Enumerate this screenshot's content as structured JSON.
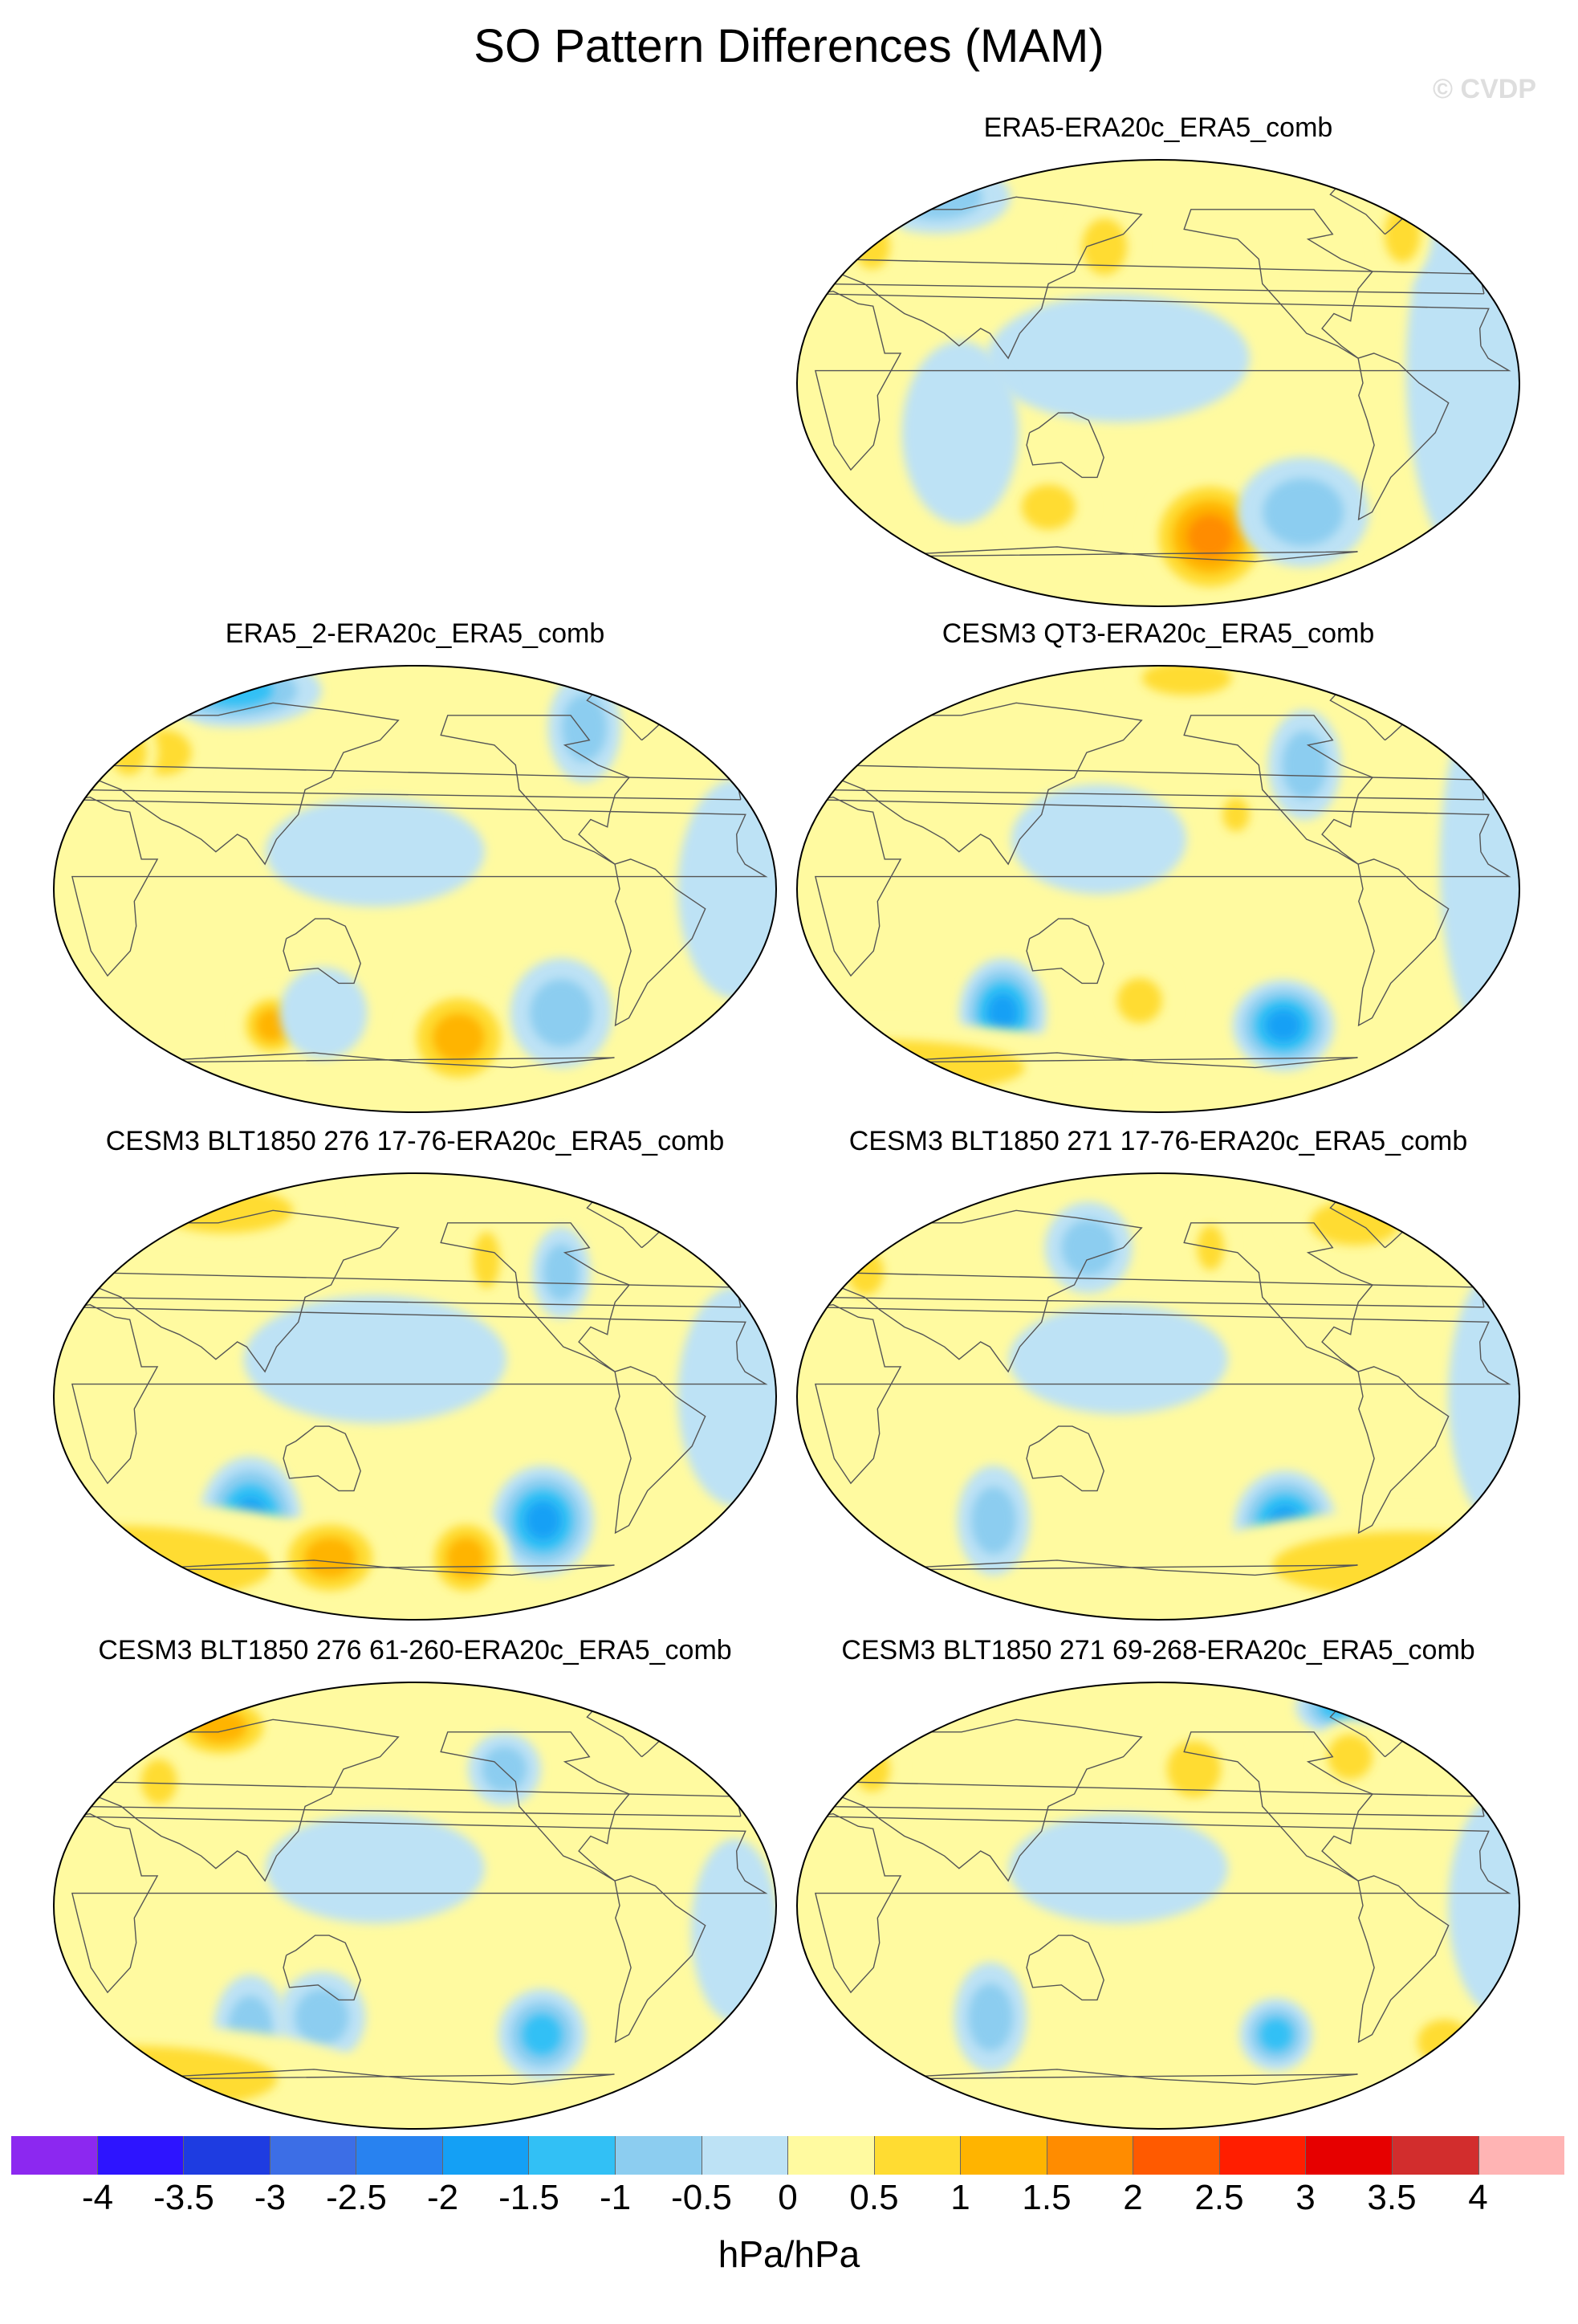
{
  "title": "SO Pattern Differences (MAM)",
  "watermark": "© CVDP",
  "panels": [
    {
      "title": "ERA5-ERA20c_ERA5_comb",
      "background": "#fffaa0",
      "anomalies": [
        {
          "lon": -150,
          "lat": -62,
          "rx": 0.09,
          "ry": 0.07,
          "level": 2.0
        },
        {
          "lon": 150,
          "lat": 55,
          "rx": 0.05,
          "ry": 0.05,
          "level": 1.0
        },
        {
          "lon": -100,
          "lat": -52,
          "rx": 0.09,
          "ry": 0.06,
          "level": -1.0
        },
        {
          "lon": -20,
          "lat": 5,
          "rx": 0.1,
          "ry": 0.22,
          "level": -0.5
        },
        {
          "lon": 160,
          "lat": 10,
          "rx": 0.18,
          "ry": 0.07,
          "level": -0.5
        },
        {
          "lon": 40,
          "lat": 75,
          "rx": 0.1,
          "ry": 0.04,
          "level": -1.0
        },
        {
          "lon": -40,
          "lat": 60,
          "rx": 0.04,
          "ry": 0.05,
          "level": 1.0
        },
        {
          "lon": 20,
          "lat": 55,
          "rx": 0.04,
          "ry": 0.04,
          "level": 1.0
        },
        {
          "lon": 120,
          "lat": -50,
          "rx": 0.06,
          "ry": 0.04,
          "level": 1.0
        },
        {
          "lon": 80,
          "lat": -20,
          "rx": 0.08,
          "ry": 0.1,
          "level": -0.5
        }
      ]
    },
    {
      "title": "ERA5_2-ERA20c_ERA5_comb",
      "background": "#fffaa0",
      "anomalies": [
        {
          "lon": -155,
          "lat": -60,
          "rx": 0.08,
          "ry": 0.06,
          "level": 1.5
        },
        {
          "lon": 100,
          "lat": -55,
          "rx": 0.05,
          "ry": 0.04,
          "level": 1.5
        },
        {
          "lon": 60,
          "lat": 80,
          "rx": 0.12,
          "ry": 0.04,
          "level": -1.5
        },
        {
          "lon": -100,
          "lat": -50,
          "rx": 0.07,
          "ry": 0.06,
          "level": -1.0
        },
        {
          "lon": 130,
          "lat": -50,
          "rx": 0.06,
          "ry": 0.05,
          "level": -0.5
        },
        {
          "lon": 160,
          "lat": 15,
          "rx": 0.15,
          "ry": 0.06,
          "level": -0.5
        },
        {
          "lon": 40,
          "lat": 55,
          "rx": 0.06,
          "ry": 0.04,
          "level": 1.0
        },
        {
          "lon": -80,
          "lat": 65,
          "rx": 0.05,
          "ry": 0.06,
          "level": -1.0
        },
        {
          "lon": -20,
          "lat": 0,
          "rx": 0.08,
          "ry": 0.12,
          "level": -0.5
        },
        {
          "lon": 20,
          "lat": 55,
          "rx": 0.04,
          "ry": 0.04,
          "level": 1.0
        }
      ]
    },
    {
      "title": "CESM3 QT3-ERA20c_ERA5_comb",
      "background": "#fffaa0",
      "anomalies": [
        {
          "lon": 95,
          "lat": -50,
          "rx": 0.06,
          "ry": 0.06,
          "level": -2.0
        },
        {
          "lon": -110,
          "lat": -55,
          "rx": 0.07,
          "ry": 0.05,
          "level": -2.0
        },
        {
          "lon": 0,
          "lat": -72,
          "rx": 0.35,
          "ry": 0.05,
          "level": 1.0
        },
        {
          "lon": 170,
          "lat": -45,
          "rx": 0.05,
          "ry": 0.04,
          "level": 1.0
        },
        {
          "lon": -160,
          "lat": 85,
          "rx": 0.1,
          "ry": 0.03,
          "level": 1.0
        },
        {
          "lon": -10,
          "lat": 10,
          "rx": 0.08,
          "ry": 0.2,
          "level": -0.5
        },
        {
          "lon": -100,
          "lat": 50,
          "rx": 0.05,
          "ry": 0.06,
          "level": -1.0
        },
        {
          "lon": 150,
          "lat": 20,
          "rx": 0.12,
          "ry": 0.06,
          "level": -0.5
        },
        {
          "lon": -140,
          "lat": 30,
          "rx": 0.03,
          "ry": 0.03,
          "level": 1.0
        }
      ]
    },
    {
      "title": "CESM3 BLT1850 276 17-76-ERA20c_ERA5_comb",
      "background": "#fffaa0",
      "anomalies": [
        {
          "lon": 90,
          "lat": -50,
          "rx": 0.07,
          "ry": 0.07,
          "level": -2.0
        },
        {
          "lon": -110,
          "lat": -50,
          "rx": 0.07,
          "ry": 0.06,
          "level": -2.0
        },
        {
          "lon": 0,
          "lat": -68,
          "rx": 0.35,
          "ry": 0.07,
          "level": 1.0
        },
        {
          "lon": 130,
          "lat": -65,
          "rx": 0.08,
          "ry": 0.05,
          "level": 1.5
        },
        {
          "lon": -150,
          "lat": -65,
          "rx": 0.06,
          "ry": 0.05,
          "level": 1.5
        },
        {
          "lon": 60,
          "lat": 75,
          "rx": 0.15,
          "ry": 0.04,
          "level": 1.0
        },
        {
          "lon": -140,
          "lat": 55,
          "rx": 0.03,
          "ry": 0.05,
          "level": 1.0
        },
        {
          "lon": 160,
          "lat": 15,
          "rx": 0.18,
          "ry": 0.07,
          "level": -0.5
        },
        {
          "lon": -20,
          "lat": 0,
          "rx": 0.08,
          "ry": 0.12,
          "level": -0.5
        },
        {
          "lon": -100,
          "lat": 50,
          "rx": 0.04,
          "ry": 0.05,
          "level": -1.0
        }
      ]
    },
    {
      "title": "CESM3 BLT1850 271 17-76-ERA20c_ERA5_comb",
      "background": "#fffaa0",
      "anomalies": [
        {
          "lon": -110,
          "lat": -52,
          "rx": 0.07,
          "ry": 0.06,
          "level": -2.0
        },
        {
          "lon": 90,
          "lat": -50,
          "rx": 0.05,
          "ry": 0.06,
          "level": -1.0
        },
        {
          "lon": -30,
          "lat": -68,
          "rx": 0.3,
          "ry": 0.06,
          "level": 1.0
        },
        {
          "lon": 140,
          "lat": 60,
          "rx": 0.06,
          "ry": 0.05,
          "level": -1.0
        },
        {
          "lon": -60,
          "lat": 70,
          "rx": 0.1,
          "ry": 0.04,
          "level": 1.0
        },
        {
          "lon": 160,
          "lat": 15,
          "rx": 0.15,
          "ry": 0.06,
          "level": -0.5
        },
        {
          "lon": -150,
          "lat": 60,
          "rx": 0.03,
          "ry": 0.04,
          "level": 1.0
        },
        {
          "lon": 20,
          "lat": 50,
          "rx": 0.04,
          "ry": 0.04,
          "level": 1.0
        },
        {
          "lon": -10,
          "lat": 0,
          "rx": 0.07,
          "ry": 0.14,
          "level": -0.5
        }
      ]
    },
    {
      "title": "CESM3 BLT1850 276 61-260-ERA20c_ERA5_comb",
      "background": "#fffaa0",
      "anomalies": [
        {
          "lon": -110,
          "lat": -52,
          "rx": 0.06,
          "ry": 0.05,
          "level": -1.5
        },
        {
          "lon": 90,
          "lat": -50,
          "rx": 0.05,
          "ry": 0.06,
          "level": -1.0
        },
        {
          "lon": 130,
          "lat": -45,
          "rx": 0.06,
          "ry": 0.05,
          "level": -1.0
        },
        {
          "lon": 0,
          "lat": -70,
          "rx": 0.35,
          "ry": 0.06,
          "level": 1.0
        },
        {
          "lon": 60,
          "lat": 72,
          "rx": 0.08,
          "ry": 0.04,
          "level": 1.5
        },
        {
          "lon": -130,
          "lat": 55,
          "rx": 0.05,
          "ry": 0.04,
          "level": -1.0
        },
        {
          "lon": 160,
          "lat": 15,
          "rx": 0.15,
          "ry": 0.06,
          "level": -0.5
        },
        {
          "lon": 40,
          "lat": 50,
          "rx": 0.04,
          "ry": 0.04,
          "level": 1.0
        },
        {
          "lon": -20,
          "lat": -10,
          "rx": 0.06,
          "ry": 0.1,
          "level": -0.5
        }
      ]
    },
    {
      "title": "CESM3 BLT1850 271 69-268-ERA20c_ERA5_comb",
      "background": "#fffaa0",
      "anomalies": [
        {
          "lon": -115,
          "lat": -52,
          "rx": 0.05,
          "ry": 0.04,
          "level": -1.5
        },
        {
          "lon": 90,
          "lat": -45,
          "rx": 0.05,
          "ry": 0.06,
          "level": -1.0
        },
        {
          "lon": -160,
          "lat": 55,
          "rx": 0.06,
          "ry": 0.05,
          "level": 1.0
        },
        {
          "lon": -60,
          "lat": 80,
          "rx": 0.06,
          "ry": 0.03,
          "level": -1.5
        },
        {
          "lon": -70,
          "lat": 60,
          "rx": 0.05,
          "ry": 0.04,
          "level": 1.0
        },
        {
          "lon": 20,
          "lat": 55,
          "rx": 0.04,
          "ry": 0.04,
          "level": 1.0
        },
        {
          "lon": 160,
          "lat": 15,
          "rx": 0.15,
          "ry": 0.06,
          "level": -0.5
        },
        {
          "lon": -10,
          "lat": 0,
          "rx": 0.07,
          "ry": 0.12,
          "level": -0.5
        },
        {
          "lon": -20,
          "lat": -55,
          "rx": 0.06,
          "ry": 0.04,
          "level": 1.0
        }
      ]
    }
  ],
  "colorbar": {
    "unit": "hPa/hPa",
    "ticks": [
      "-4",
      "-3.5",
      "-3",
      "-2.5",
      "-2",
      "-1.5",
      "-1",
      "-0.5",
      "0",
      "0.5",
      "1",
      "1.5",
      "2",
      "2.5",
      "3",
      "3.5",
      "4"
    ],
    "colors": [
      "#8c28f0",
      "#2d14ff",
      "#1e3ce1",
      "#3c6ee6",
      "#2882f0",
      "#14a0f5",
      "#32c0f5",
      "#8ccdf0",
      "#bde2f5",
      "#fffaa0",
      "#ffdc32",
      "#ffb400",
      "#ff8c00",
      "#ff5a00",
      "#ff1e00",
      "#e60000",
      "#d22d2d",
      "#ffb4b4"
    ],
    "levels": [
      -4,
      -3.5,
      -3,
      -2.5,
      -2,
      -1.5,
      -1,
      -0.5,
      0,
      0.5,
      1,
      1.5,
      2,
      2.5,
      3,
      3.5,
      4
    ]
  }
}
